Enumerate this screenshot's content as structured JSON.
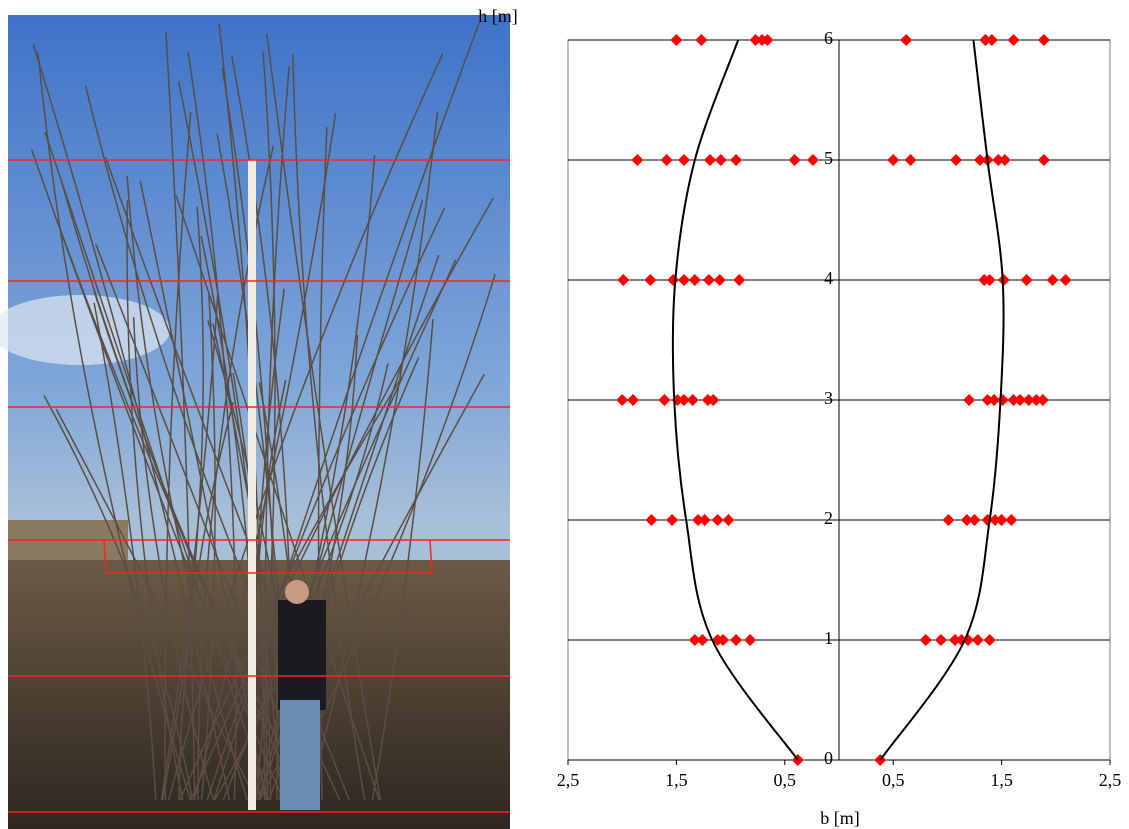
{
  "chart_data": {
    "type": "scatter",
    "xlabel": "b [m]",
    "ylabel": "h [m]",
    "xlim": [
      -2.5,
      2.5
    ],
    "ylim": [
      0,
      6
    ],
    "xticks": [
      {
        "value": -2.5,
        "label": "2,5"
      },
      {
        "value": -1.5,
        "label": "1,5"
      },
      {
        "value": -0.5,
        "label": "0,5"
      },
      {
        "value": 0.5,
        "label": "0,5"
      },
      {
        "value": 1.5,
        "label": "1,5"
      },
      {
        "value": 2.5,
        "label": "2,5"
      }
    ],
    "yticks": [
      0,
      1,
      2,
      3,
      4,
      5,
      6
    ],
    "grid": true,
    "series": [
      {
        "kind": "points",
        "color": "#ff0000",
        "x": [
          -1.5,
          -1.27,
          -0.77,
          -0.71,
          -0.66,
          -1.86,
          -1.59,
          -1.43,
          -1.19,
          -1.09,
          -0.95,
          -0.41,
          -0.24,
          -1.99,
          -1.74,
          -1.53,
          -1.43,
          -1.33,
          -1.2,
          -1.1,
          -0.92,
          -2.0,
          -1.9,
          -1.61,
          -1.49,
          -1.43,
          -1.35,
          -1.21,
          -1.16,
          -1.73,
          -1.54,
          -1.3,
          -1.24,
          -1.12,
          -1.02,
          -1.33,
          -1.26,
          -1.12,
          -1.07,
          -0.95,
          -0.82,
          -0.38
        ],
        "values": [
          6,
          6,
          6,
          6,
          6,
          5,
          5,
          5,
          5,
          5,
          5,
          5,
          5,
          4,
          4,
          4,
          4,
          4,
          4,
          4,
          4,
          3,
          3,
          3,
          3,
          3,
          3,
          3,
          3,
          2,
          2,
          2,
          2,
          2,
          2,
          1,
          1,
          1,
          1,
          1,
          1,
          0
        ]
      },
      {
        "kind": "points",
        "color": "#ff0000",
        "x": [
          0.62,
          1.35,
          1.41,
          1.61,
          1.89,
          0.5,
          0.66,
          1.08,
          1.3,
          1.37,
          1.47,
          1.53,
          1.89,
          1.34,
          1.39,
          1.52,
          1.73,
          1.97,
          2.09,
          1.2,
          1.37,
          1.43,
          1.51,
          1.61,
          1.67,
          1.75,
          1.82,
          1.88,
          1.01,
          1.18,
          1.25,
          1.37,
          1.44,
          1.5,
          1.59,
          0.8,
          0.94,
          1.07,
          1.13,
          1.19,
          1.28,
          1.39,
          0.38
        ],
        "values": [
          6,
          6,
          6,
          6,
          6,
          5,
          5,
          5,
          5,
          5,
          5,
          5,
          5,
          4,
          4,
          4,
          4,
          4,
          4,
          3,
          3,
          3,
          3,
          3,
          3,
          3,
          3,
          3,
          2,
          2,
          2,
          2,
          2,
          2,
          2,
          1,
          1,
          1,
          1,
          1,
          1,
          1,
          0
        ]
      },
      {
        "kind": "curve",
        "color": "#000000",
        "x": [
          -0.38,
          -1.17,
          -1.41,
          -1.52,
          -1.51,
          -1.33,
          -0.93
        ],
        "values": [
          0,
          1,
          2,
          3,
          4,
          5,
          6
        ]
      },
      {
        "kind": "curve",
        "color": "#000000",
        "x": [
          0.38,
          1.16,
          1.39,
          1.49,
          1.51,
          1.37,
          1.24
        ],
        "values": [
          0,
          1,
          2,
          3,
          4,
          5,
          6
        ]
      }
    ]
  }
}
